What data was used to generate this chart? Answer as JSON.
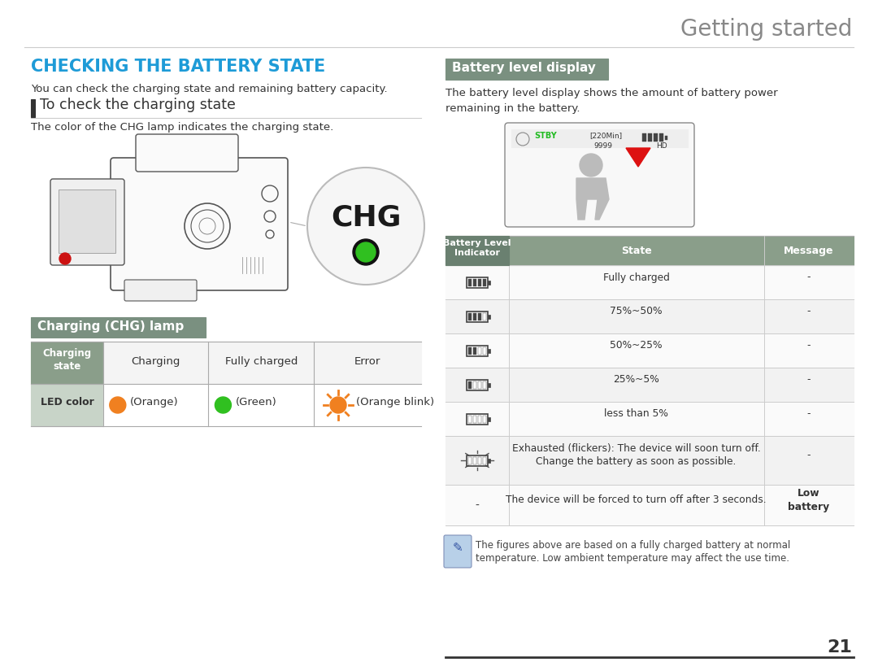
{
  "title": "Getting started",
  "title_color": "#888888",
  "title_fontsize": 20,
  "section_title": "CHECKING THE BATTERY STATE",
  "section_title_color": "#1E9BD7",
  "section_title_fontsize": 15,
  "section_desc": "You can check the charging state and remaining battery capacity.",
  "subsection_title": "To check the charging state",
  "subsection_desc": "The color of the CHG lamp indicates the charging state.",
  "charging_section_title": "Charging (CHG) lamp",
  "charging_header_bg": "#7A9080",
  "charging_table_header_bg": "#8A9E8A",
  "battery_section_title": "Battery level display",
  "battery_section_bg": "#7A9080",
  "battery_desc1": "The battery level display shows the amount of battery power",
  "battery_desc2": "remaining in the battery.",
  "chg_table_cols": [
    "Charging\nstate",
    "Charging",
    "Fully charged",
    "Error"
  ],
  "chg_table_led": [
    "LED color",
    "(Orange)",
    "(Green)",
    "(Orange blink)"
  ],
  "battery_table_headers": [
    "Battery Level\nIndicator",
    "State",
    "Message"
  ],
  "battery_table_rows": [
    [
      "Fully charged",
      "-"
    ],
    [
      "75%~50%",
      "-"
    ],
    [
      "50%~25%",
      "-"
    ],
    [
      "25%~5%",
      "-"
    ],
    [
      "less than 5%",
      "-"
    ],
    [
      "Exhausted (flickers): The device will soon turn off.\nChange the battery as soon as possible.",
      "-"
    ],
    [
      "The device will be forced to turn off after 3 seconds.",
      "Low\nbattery"
    ]
  ],
  "note_text": "The figures above are based on a fully charged battery at normal\ntemperature. Low ambient temperature may affect the use time.",
  "page_number": "21",
  "bg_color": "#FFFFFF",
  "text_color": "#333333",
  "table_line_color": "#CCCCCC",
  "orange_color": "#F08020",
  "green_color": "#30C020",
  "note_box_color": "#B8D0E8",
  "separator_color": "#CCCCCC",
  "col_divider": 528
}
